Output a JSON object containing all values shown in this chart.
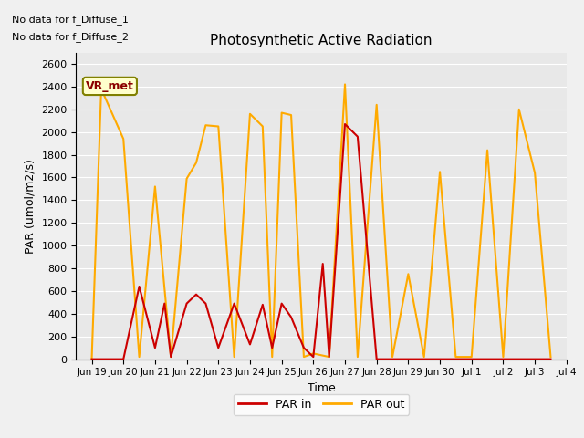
{
  "title": "Photosynthetic Active Radiation",
  "ylabel": "PAR (umol/m2/s)",
  "xlabel": "Time",
  "annotations": [
    "No data for f_Diffuse_1",
    "No data for f_Diffuse_2"
  ],
  "legend_box_label": "VR_met",
  "fig_facecolor": "#f0f0f0",
  "ax_facecolor": "#e8e8e8",
  "ylim": [
    0,
    2700
  ],
  "yticks": [
    0,
    200,
    400,
    600,
    800,
    1000,
    1200,
    1400,
    1600,
    1800,
    2000,
    2200,
    2400,
    2600
  ],
  "par_in_color": "#cc0000",
  "par_out_color": "#ffaa00",
  "x_tick_labels": [
    "Jun 19",
    "Jun 20",
    "Jun 21",
    "Jun 22",
    "Jun 23",
    "Jun 24",
    "Jun 25",
    "Jun 26",
    "Jun 27",
    "Jun 28",
    "Jun 29",
    "Jun 30",
    "Jul 1",
    "Jul 2",
    "Jul 3",
    "Jul 4"
  ],
  "par_out_x": [
    0,
    0.3,
    1.0,
    1.5,
    2.0,
    2.5,
    3.0,
    3.3,
    3.6,
    4.0,
    4.5,
    5.0,
    5.4,
    5.7,
    6.0,
    6.3,
    6.7,
    7.0,
    7.5,
    8.0,
    8.4,
    9.0,
    9.5,
    10.0,
    10.5,
    11.0,
    11.5,
    12.0,
    12.5,
    13.0,
    13.5,
    14.0,
    14.5
  ],
  "par_out_y": [
    0,
    2380,
    1940,
    20,
    1520,
    20,
    1590,
    1730,
    2060,
    2050,
    20,
    2160,
    2050,
    20,
    2170,
    2150,
    20,
    50,
    20,
    2420,
    20,
    2240,
    20,
    750,
    20,
    1650,
    20,
    20,
    1840,
    20,
    2200,
    1640,
    20
  ],
  "par_in_x": [
    0,
    0.3,
    1.0,
    1.5,
    2.0,
    2.3,
    2.5,
    3.0,
    3.3,
    3.6,
    4.0,
    4.5,
    5.0,
    5.4,
    5.7,
    6.0,
    6.3,
    6.7,
    7.0,
    7.3,
    7.5,
    8.0,
    8.4,
    9.0,
    9.5,
    10.0,
    10.5,
    11.0,
    11.5,
    12.0,
    12.5,
    13.0,
    13.5,
    14.0,
    14.5
  ],
  "par_in_y": [
    0,
    0,
    0,
    640,
    100,
    490,
    20,
    490,
    570,
    490,
    100,
    490,
    130,
    480,
    100,
    490,
    370,
    100,
    20,
    840,
    20,
    2070,
    1960,
    0,
    0,
    0,
    0,
    0,
    0,
    0,
    0,
    0,
    0,
    0,
    0
  ]
}
